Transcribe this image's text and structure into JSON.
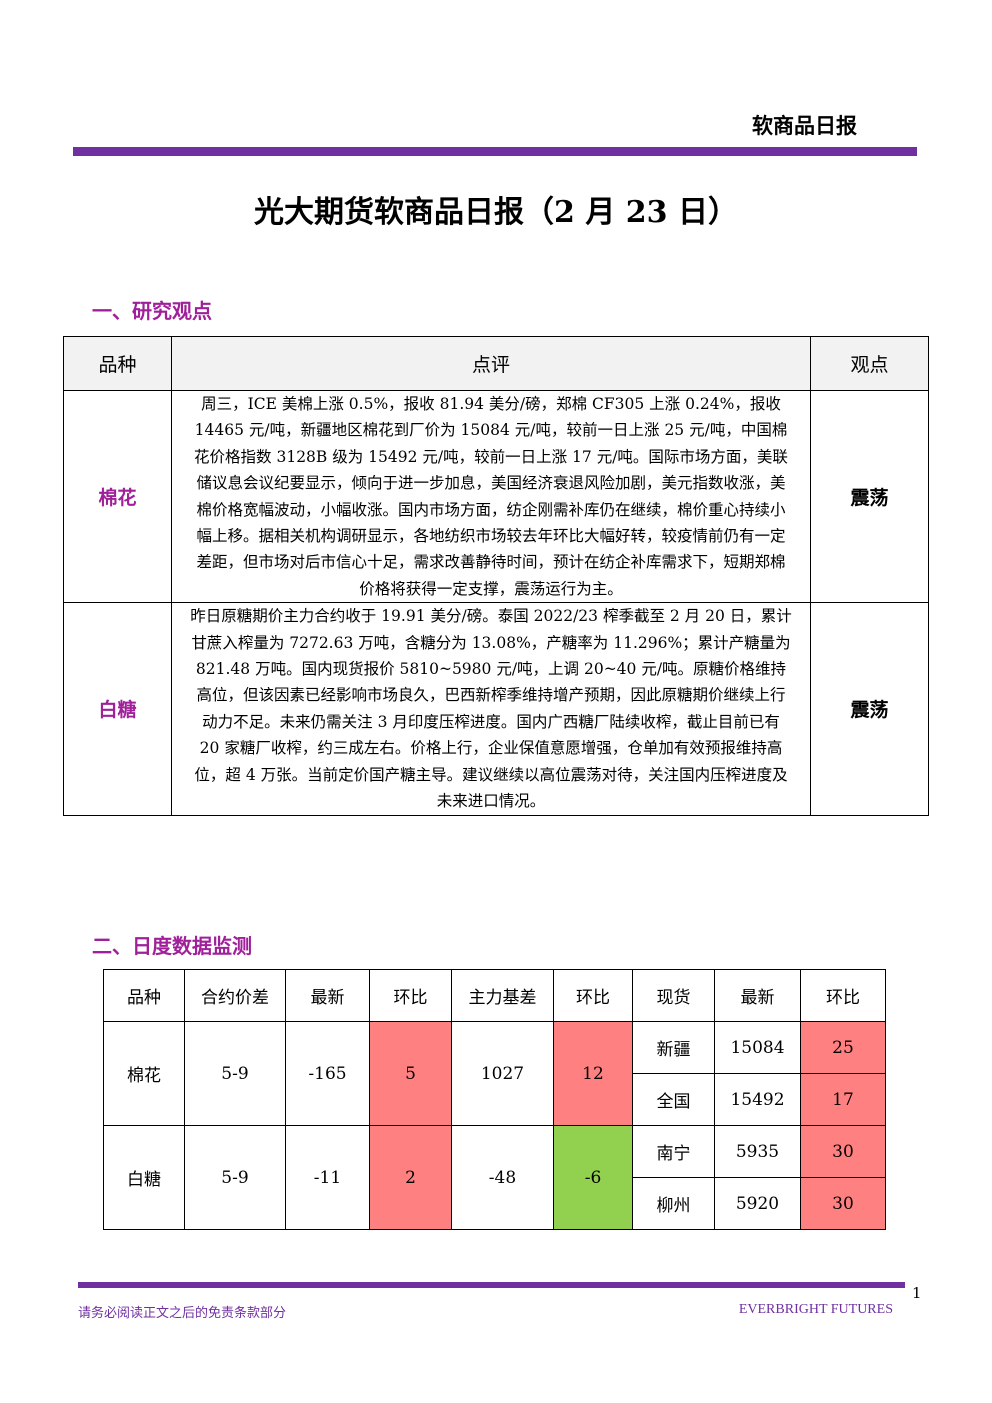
{
  "header": {
    "label": "软商品日报"
  },
  "title": "光大期货软商品日报（2 月 23 日）",
  "section1": {
    "heading": "一、研究观点",
    "table": {
      "headers": [
        "品种",
        "点评",
        "观点"
      ],
      "rows": [
        [
          "棉花",
          "周三，ICE 美棉上涨 0.5%，报收 81.94 美分/磅，郑棉 CF305 上涨 0.24%，报收 14465 元/吨，新疆地区棉花到厂价为 15084 元/吨，较前一日上涨 25 元/吨，中国棉花价格指数 3128B 级为 15492 元/吨，较前一日上涨 17 元/吨。国际市场方面，美联储议息会议纪要显示，倾向于进一步加息，美国经济衰退风险加剧，美元指数收涨，美棉价格宽幅波动，小幅收涨。国内市场方面，纺企刚需补库仍在继续，棉价重心持续小幅上移。据相关机构调研显示，各地纺织市场较去年环比大幅好转，较疫情前仍有一定差距，但市场对后市信心十足，需求改善静待时间，预计在纺企补库需求下，短期郑棉价格将获得一定支撑，震荡运行为主。",
          "震荡"
        ],
        [
          "白糖",
          "昨日原糖期价主力合约收于 19.91 美分/磅。泰国 2022/23 榨季截至 2 月 20 日，累计甘蔗入榨量为 7272.63 万吨，含糖分为 13.08%，产糖率为 11.296%；累计产糖量为 821.48 万吨。国内现货报价 5810~5980 元/吨，上调 20~40 元/吨。原糖价格维持高位，但该因素已经影响市场良久，巴西新榨季维持增产预期，因此原糖期价继续上行动力不足。未来仍需关注 3 月印度压榨进度。国内广西糖厂陆续收榨，截止目前已有 20 家糖厂收榨，约三成左右。价格上行，企业保值意愿增强，仓单加有效预报维持高位，超 4 万张。当前定价国产糖主导。建议继续以高位震荡对待，关注国内压榨进度及未来进口情况。",
          "震荡"
        ]
      ]
    }
  },
  "section2": {
    "heading": "二、日度数据监测",
    "table": {
      "headers": [
        "品种",
        "合约价差",
        "最新",
        "环比",
        "主力基差",
        "环比",
        "现货",
        "最新",
        "环比"
      ],
      "rows": [
        {
          "cells": [
            "棉花",
            "5-9",
            "-165",
            "5",
            "1027",
            "12"
          ],
          "spots": [
            [
              "新疆",
              "15084",
              "25"
            ],
            [
              "全国",
              "15492",
              "17"
            ]
          ]
        },
        {
          "cells": [
            "白糖",
            "5-9",
            "-11",
            "2",
            "-48",
            "-6"
          ],
          "spots": [
            [
              "南宁",
              "5935",
              "30"
            ],
            [
              "柳州",
              "5920",
              "30"
            ]
          ]
        }
      ]
    }
  },
  "footer": {
    "disclaimer": "请务必阅读正文之后的免责条款部分",
    "company": "EVERBRIGHT FUTURES",
    "page": "1"
  }
}
